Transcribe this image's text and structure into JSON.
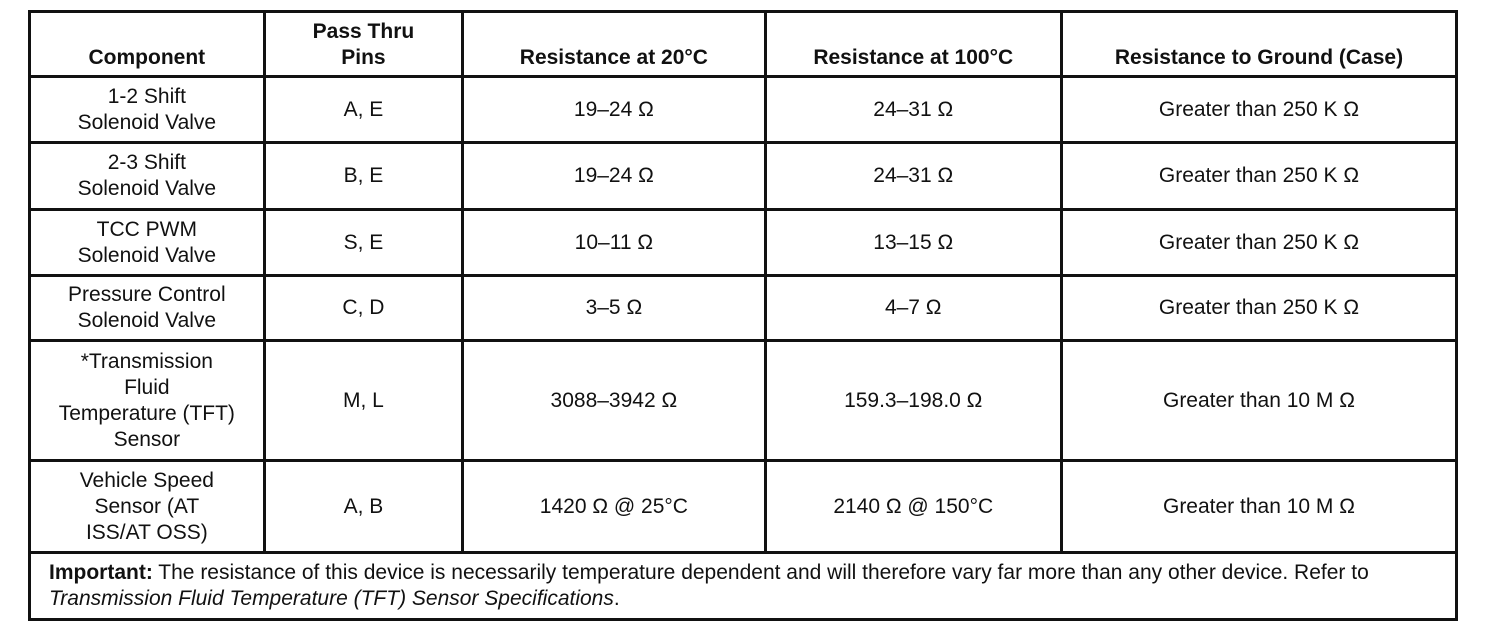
{
  "table": {
    "header": [
      [
        "Component"
      ],
      [
        "Pass Thru",
        "Pins"
      ],
      [
        "Resistance at 20°C"
      ],
      [
        "Resistance at 100°C"
      ],
      [
        "Resistance to Ground (Case)"
      ]
    ],
    "rows": [
      [
        [
          "1-2 Shift",
          "Solenoid Valve"
        ],
        [
          "A, E"
        ],
        [
          "19–24 Ω"
        ],
        [
          "24–31 Ω"
        ],
        [
          "Greater than 250 K Ω"
        ]
      ],
      [
        [
          "2-3 Shift",
          "Solenoid Valve"
        ],
        [
          "B, E"
        ],
        [
          "19–24 Ω"
        ],
        [
          "24–31 Ω"
        ],
        [
          "Greater than 250 K Ω"
        ]
      ],
      [
        [
          "TCC PWM",
          "Solenoid Valve"
        ],
        [
          "S, E"
        ],
        [
          "10–11 Ω"
        ],
        [
          "13–15 Ω"
        ],
        [
          "Greater than 250 K Ω"
        ]
      ],
      [
        [
          "Pressure Control",
          "Solenoid Valve"
        ],
        [
          "C, D"
        ],
        [
          "3–5 Ω"
        ],
        [
          "4–7 Ω"
        ],
        [
          "Greater than 250 K Ω"
        ]
      ],
      [
        [
          "*Transmission",
          "Fluid",
          "Temperature (TFT)",
          "Sensor"
        ],
        [
          "M, L"
        ],
        [
          "3088–3942 Ω"
        ],
        [
          "159.3–198.0 Ω"
        ],
        [
          "Greater than 10 M Ω"
        ]
      ],
      [
        [
          "Vehicle Speed",
          "Sensor (AT",
          "ISS/AT OSS)"
        ],
        [
          "A, B"
        ],
        [
          "1420 Ω @ 25°C"
        ],
        [
          "2140 Ω @ 150°C"
        ],
        [
          "Greater than 10 M Ω"
        ]
      ]
    ],
    "note": {
      "label": "Important:",
      "text": "The resistance of this device is necessarily temperature dependent and will therefore vary far more than any other device. Refer to",
      "reference": "Transmission Fluid Temperature (TFT) Sensor Specifications",
      "end": "."
    }
  }
}
